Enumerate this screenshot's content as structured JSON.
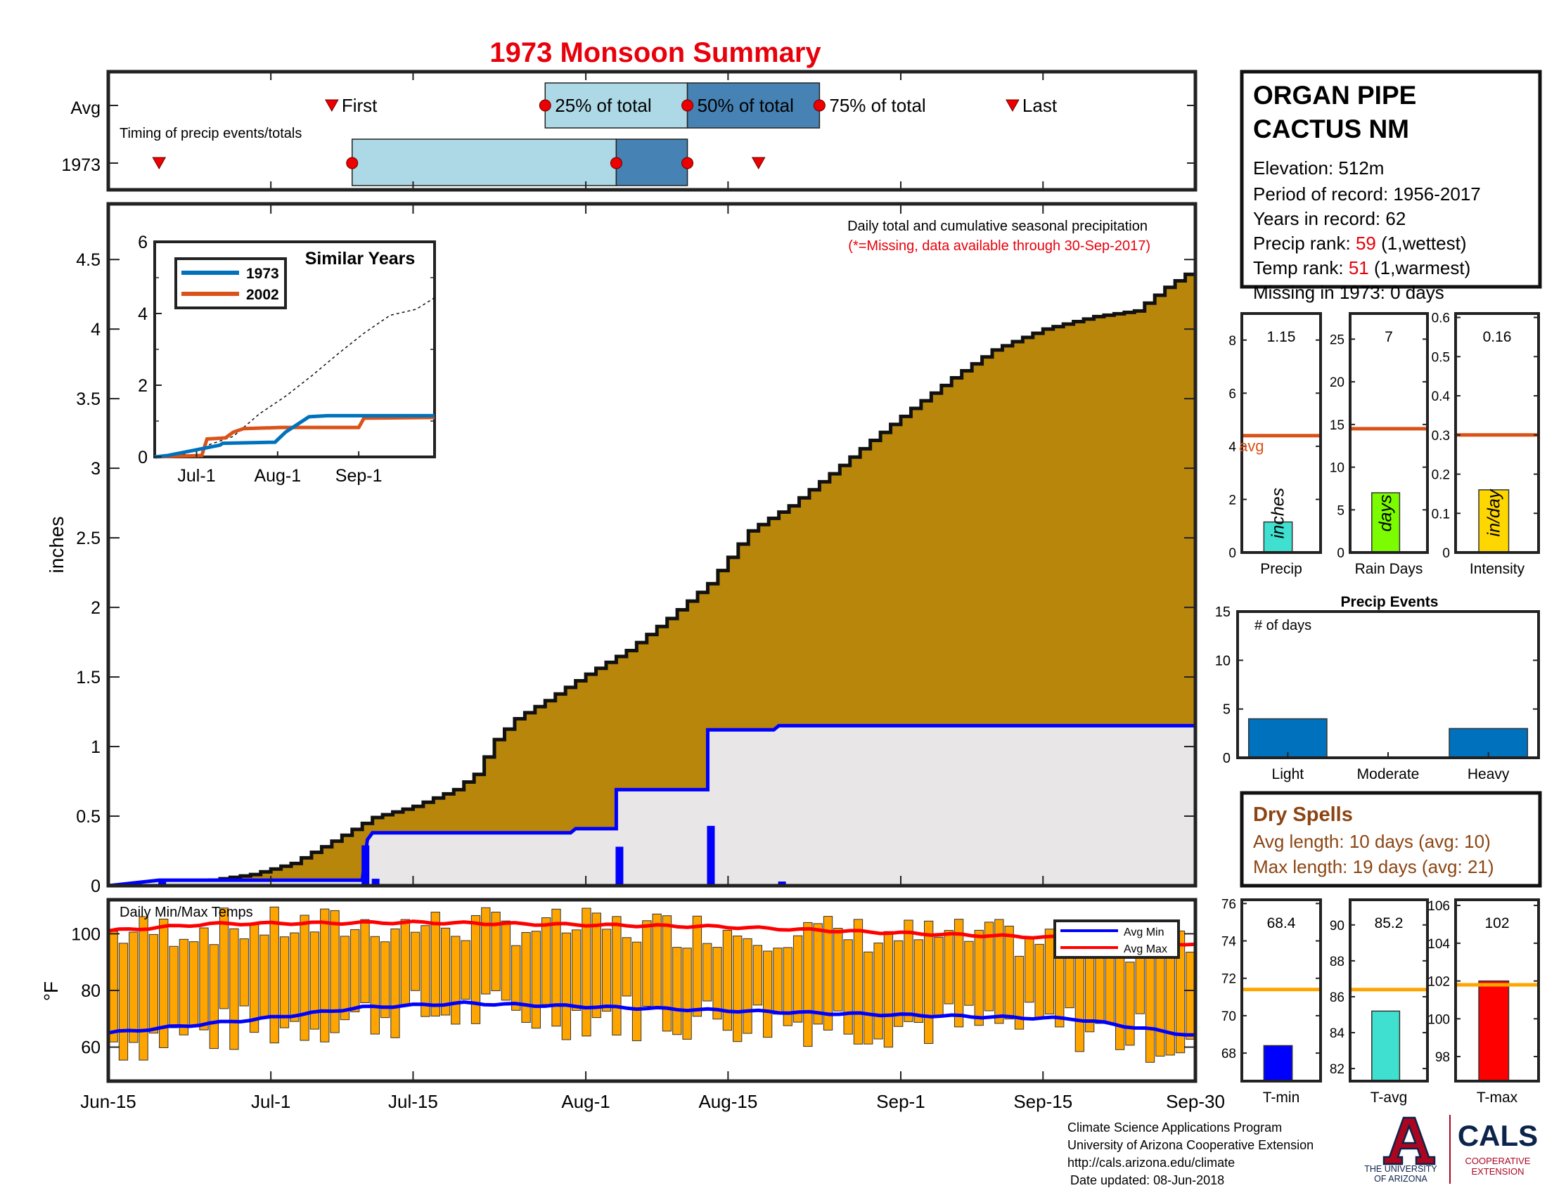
{
  "title": "1973 Monsoon Summary",
  "timing": {
    "row_avg": "Avg",
    "row_year": "1973",
    "note": "Timing of precip events/totals",
    "first": "First",
    "last": "Last",
    "p25": "25% of total",
    "p50": "50% of total",
    "p75": "75% of total"
  },
  "station": {
    "name_line1": "ORGAN PIPE",
    "name_line2": "CACTUS NM",
    "elevation": "Elevation: 512m",
    "period": "Period of record: 1956-2017",
    "years": "Years in record: 62",
    "precip_rank_label": "Precip rank:",
    "precip_rank": "59",
    "precip_rank_note": "(1,wettest)",
    "temp_rank_label": "Temp rank:",
    "temp_rank": "51",
    "temp_rank_note": "(1,warmest)",
    "missing": "Missing in 1973: 0 days"
  },
  "main": {
    "ylabel": "inches",
    "note1": "Daily total and cumulative seasonal precipitation",
    "note2": "(*=Missing, data available through 30-Sep-2017)",
    "inset_title": "Similar Years",
    "temps_title": "Daily Min/Max Temps",
    "temps_ylabel": "°F",
    "legend_min": "Avg Min",
    "legend_max": "Avg Max"
  },
  "dry": {
    "title": "Dry Spells",
    "avg": "Avg length: 10 days (avg: 10)",
    "max": "Max length: 19 days (avg: 21)"
  },
  "footer": {
    "line1": "Climate Science Applications Program",
    "line2": "University of Arizona Cooperative Extension",
    "line3": "http://cals.arizona.edu/climate",
    "line4": "Date updated: 08-Jun-2018",
    "ua_line1": "THE UNIVERSITY",
    "ua_line2": "OF ARIZONA",
    "cals": "CALS",
    "cals_sub1": "COOPERATIVE",
    "cals_sub2": "EXTENSION"
  },
  "colors": {
    "title": "#e8000b",
    "avg_cum_fill": "#b8860b",
    "obs_fill": "#e8e6e6",
    "obs_line": "#0000ff",
    "bar_light": "#add8e6",
    "bar_dark": "#4682b4",
    "temp_bar": "#ffa500",
    "avg_min": "#0000ff",
    "avg_max": "#ff0000",
    "series_1973": "#0072bd",
    "series_2002": "#d95319",
    "ua_red": "#ab0520",
    "ua_blue": "#0c234b"
  },
  "chart_data": [
    {
      "id": "timing",
      "type": "timeline",
      "avg": {
        "first": "Jul-7",
        "p25": "Jul-28",
        "p50": "Aug-11",
        "p75": "Aug-24",
        "last": "Sep-12"
      },
      "year_1973": {
        "first": "Jun-20",
        "p25": "Jul-9",
        "p50": "Aug-4",
        "p75": "Aug-11",
        "last": "Aug-18"
      }
    },
    {
      "id": "cumulative_precip",
      "type": "area",
      "xlabel": "",
      "ylabel": "inches",
      "ylim": [
        0,
        4.9
      ],
      "y_ticks": [
        0,
        0.5,
        1,
        1.5,
        2,
        2.5,
        3,
        3.5,
        4,
        4.5
      ],
      "x_tick_labels": [
        "Jun-15",
        "Jul-1",
        "Jul-15",
        "Aug-1",
        "Aug-15",
        "Sep-1",
        "Sep-15",
        "Sep-30"
      ],
      "x_tick_days": [
        0,
        16,
        30,
        47,
        61,
        78,
        92,
        107
      ],
      "avg_cumulative_keypoints": [
        [
          0,
          0
        ],
        [
          2,
          0.005
        ],
        [
          6,
          0.02
        ],
        [
          10,
          0.04
        ],
        [
          14,
          0.08
        ],
        [
          18,
          0.16
        ],
        [
          22,
          0.32
        ],
        [
          26,
          0.49
        ],
        [
          30,
          0.57
        ],
        [
          34,
          0.69
        ],
        [
          36,
          0.8
        ],
        [
          38,
          1.05
        ],
        [
          40,
          1.2
        ],
        [
          43,
          1.33
        ],
        [
          47,
          1.52
        ],
        [
          51,
          1.69
        ],
        [
          55,
          1.92
        ],
        [
          59,
          2.17
        ],
        [
          63,
          2.55
        ],
        [
          67,
          2.73
        ],
        [
          71,
          2.96
        ],
        [
          75,
          3.2
        ],
        [
          79,
          3.43
        ],
        [
          83,
          3.65
        ],
        [
          87,
          3.85
        ],
        [
          92,
          4.0
        ],
        [
          97,
          4.09
        ],
        [
          101,
          4.13
        ],
        [
          104,
          4.3
        ],
        [
          107,
          4.44
        ]
      ],
      "observed_1973_cumulative": [
        [
          0,
          0
        ],
        [
          5,
          0.04
        ],
        [
          25,
          0.04
        ],
        [
          25.5,
          0.33
        ],
        [
          26,
          0.38
        ],
        [
          45.5,
          0.38
        ],
        [
          46,
          0.41
        ],
        [
          50,
          0.41
        ],
        [
          50,
          0.69
        ],
        [
          59,
          0.69
        ],
        [
          59,
          1.12
        ],
        [
          65.5,
          1.12
        ],
        [
          66,
          1.15
        ],
        [
          107,
          1.15
        ]
      ],
      "daily_precip_1973": [
        [
          5,
          0.04
        ],
        [
          25,
          0.29
        ],
        [
          26,
          0.05
        ],
        [
          50,
          0.28
        ],
        [
          59,
          0.43
        ],
        [
          66,
          0.03
        ]
      ]
    },
    {
      "id": "similar_years",
      "type": "line",
      "title": "Similar Years",
      "ylim": [
        0,
        6
      ],
      "y_ticks": [
        0,
        2,
        4,
        6
      ],
      "x_tick_labels": [
        "Jul-1",
        "Aug-1",
        "Sep-1"
      ],
      "series": [
        {
          "name": "1973",
          "points": [
            [
              0,
              0
            ],
            [
              5,
              0.04
            ],
            [
              25,
              0.33
            ],
            [
              26,
              0.38
            ],
            [
              46,
              0.41
            ],
            [
              50,
              0.69
            ],
            [
              59,
              1.12
            ],
            [
              66,
              1.15
            ],
            [
              107,
              1.15
            ]
          ]
        },
        {
          "name": "2002",
          "points": [
            [
              0,
              0
            ],
            [
              18,
              0.04
            ],
            [
              20,
              0.5
            ],
            [
              27,
              0.53
            ],
            [
              30,
              0.69
            ],
            [
              34,
              0.79
            ],
            [
              48,
              0.82
            ],
            [
              78,
              0.82
            ],
            [
              80,
              1.08
            ],
            [
              107,
              1.1
            ]
          ]
        }
      ],
      "avg_dashed": [
        [
          0,
          0
        ],
        [
          10,
          0.04
        ],
        [
          20,
          0.32
        ],
        [
          30,
          0.57
        ],
        [
          40,
          1.2
        ],
        [
          50,
          1.69
        ],
        [
          60,
          2.26
        ],
        [
          70,
          2.87
        ],
        [
          80,
          3.45
        ],
        [
          90,
          3.95
        ],
        [
          100,
          4.12
        ],
        [
          107,
          4.44
        ]
      ]
    },
    {
      "id": "daily_temps",
      "type": "bar",
      "title": "Daily Min/Max Temps",
      "ylabel": "°F",
      "ylim": [
        48,
        112
      ],
      "y_ticks": [
        60,
        80,
        100
      ],
      "avg_min_keypoints": [
        [
          0,
          65
        ],
        [
          15,
          70
        ],
        [
          25,
          74
        ],
        [
          35,
          75.5
        ],
        [
          50,
          74
        ],
        [
          70,
          72
        ],
        [
          95,
          70
        ],
        [
          103,
          66
        ],
        [
          107,
          64
        ]
      ],
      "avg_max_keypoints": [
        [
          0,
          101
        ],
        [
          10,
          103.5
        ],
        [
          30,
          104
        ],
        [
          60,
          102.5
        ],
        [
          80,
          100
        ],
        [
          100,
          98
        ],
        [
          107,
          96
        ]
      ],
      "daily_range_note": "daily min/max bars oscillate between roughly 55-80 (low) and 95-109 (high)"
    },
    {
      "id": "precip_total",
      "type": "bar",
      "xlabel": "Precip",
      "unit": "inches",
      "value": 1.15,
      "avg": 4.4,
      "ylim": [
        0,
        9
      ],
      "y_ticks": [
        0,
        2,
        4,
        6,
        8
      ],
      "avg_label": "avg",
      "value_label": "1.15",
      "color": "#40e0d0"
    },
    {
      "id": "rain_days",
      "type": "bar",
      "xlabel": "Rain Days",
      "unit": "days",
      "value": 7,
      "avg": 14.5,
      "ylim": [
        0,
        28
      ],
      "y_ticks": [
        0,
        5,
        10,
        15,
        20,
        25
      ],
      "value_label": "7",
      "color": "#7cfc00"
    },
    {
      "id": "intensity",
      "type": "bar",
      "xlabel": "Intensity",
      "unit": "in/day",
      "value": 0.16,
      "avg": 0.3,
      "ylim": [
        0,
        0.61
      ],
      "y_ticks": [
        0,
        0.1,
        0.2,
        0.3,
        0.4,
        0.5,
        0.6
      ],
      "value_label": "0.16",
      "color": "#ffd700"
    },
    {
      "id": "precip_events",
      "type": "bar",
      "title": "Precip Events",
      "ylabel": "# of days",
      "categories": [
        "Light",
        "Moderate",
        "Heavy"
      ],
      "values": [
        4,
        0,
        3
      ],
      "ylim": [
        0,
        15
      ],
      "y_ticks": [
        0,
        5,
        10,
        15
      ],
      "color": "#0072bd"
    },
    {
      "id": "t_min",
      "type": "bar",
      "xlabel": "T-min",
      "value": 68.4,
      "avg": 71.4,
      "ylim": [
        66.5,
        76.2
      ],
      "y_ticks": [
        68,
        70,
        72,
        74,
        76
      ],
      "value_label": "68.4",
      "color": "#0000ff"
    },
    {
      "id": "t_avg",
      "type": "bar",
      "xlabel": "T-avg",
      "value": 85.2,
      "avg": 86.4,
      "ylim": [
        81.3,
        91.4
      ],
      "y_ticks": [
        82,
        84,
        86,
        88,
        90
      ],
      "value_label": "85.2",
      "color": "#40e0d0"
    },
    {
      "id": "t_max",
      "type": "bar",
      "xlabel": "T-max",
      "value": 102,
      "avg": 101.8,
      "ylim": [
        96.7,
        106.3
      ],
      "y_ticks": [
        98,
        100,
        102,
        104,
        106
      ],
      "value_label": "102",
      "color": "#ff0000"
    }
  ]
}
